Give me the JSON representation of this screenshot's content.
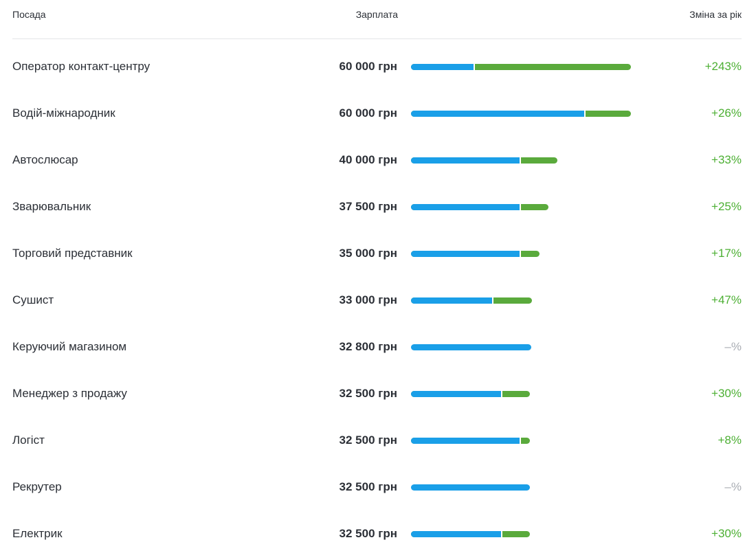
{
  "header": {
    "position": "Посада",
    "salary": "Зарплата",
    "change": "Зміна за рік"
  },
  "table": {
    "rows": [
      {
        "title": "Оператор контакт-центру",
        "salary": 60000,
        "salary_label": "60 000 грн",
        "change": 243,
        "change_label": "+243%"
      },
      {
        "title": "Водій-міжнародник",
        "salary": 60000,
        "salary_label": "60 000 грн",
        "change": 26,
        "change_label": "+26%"
      },
      {
        "title": "Автослюсар",
        "salary": 40000,
        "salary_label": "40 000 грн",
        "change": 33,
        "change_label": "+33%"
      },
      {
        "title": "Зварювальник",
        "salary": 37500,
        "salary_label": "37 500 грн",
        "change": 25,
        "change_label": "+25%"
      },
      {
        "title": "Торговий представник",
        "salary": 35000,
        "salary_label": "35 000 грн",
        "change": 17,
        "change_label": "+17%"
      },
      {
        "title": "Сушист",
        "salary": 33000,
        "salary_label": "33 000 грн",
        "change": 47,
        "change_label": "+47%"
      },
      {
        "title": "Керуючий магазином",
        "salary": 32800,
        "salary_label": "32 800 грн",
        "change": null,
        "change_label": "–%"
      },
      {
        "title": "Менеджер з продажу",
        "salary": 32500,
        "salary_label": "32 500 грн",
        "change": 30,
        "change_label": "+30%"
      },
      {
        "title": "Логіст",
        "salary": 32500,
        "salary_label": "32 500 грн",
        "change": 8,
        "change_label": "+8%"
      },
      {
        "title": "Рекрутер",
        "salary": 32500,
        "salary_label": "32 500 грн",
        "change": null,
        "change_label": "–%"
      },
      {
        "title": "Електрик",
        "salary": 32500,
        "salary_label": "32 500 грн",
        "change": 30,
        "change_label": "+30%"
      }
    ]
  }
}
